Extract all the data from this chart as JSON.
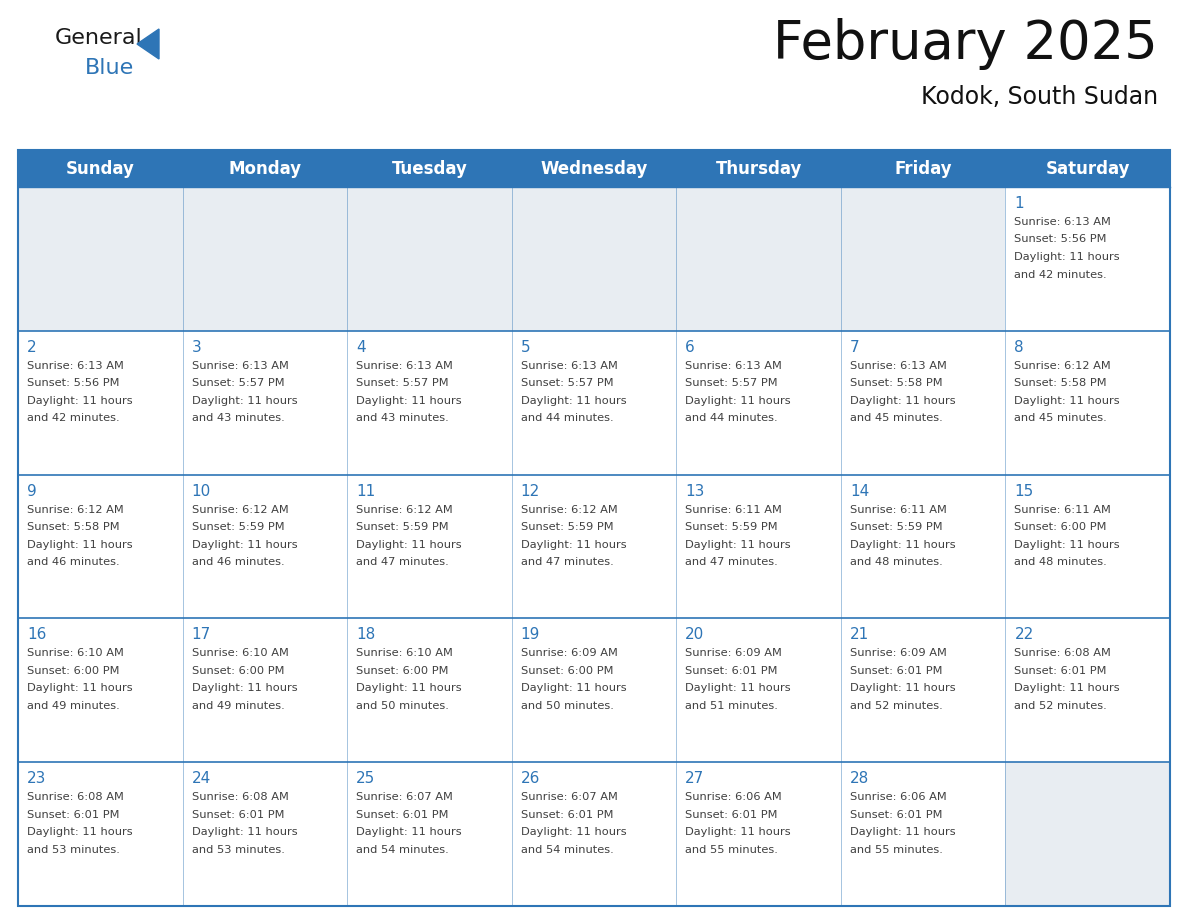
{
  "title": "February 2025",
  "subtitle": "Kodok, South Sudan",
  "header_bg_color": "#2E75B6",
  "header_text_color": "#FFFFFF",
  "cell_bg_color": "#FFFFFF",
  "empty_cell_bg_color": "#DDEEFF",
  "day_number_color": "#2E75B6",
  "info_text_color": "#404040",
  "border_color": "#2E75B6",
  "grid_line_color": "#2E75B6",
  "days_of_week": [
    "Sunday",
    "Monday",
    "Tuesday",
    "Wednesday",
    "Thursday",
    "Friday",
    "Saturday"
  ],
  "weeks": [
    [
      {
        "day": null,
        "sunrise": null,
        "sunset": null,
        "daylight": null
      },
      {
        "day": null,
        "sunrise": null,
        "sunset": null,
        "daylight": null
      },
      {
        "day": null,
        "sunrise": null,
        "sunset": null,
        "daylight": null
      },
      {
        "day": null,
        "sunrise": null,
        "sunset": null,
        "daylight": null
      },
      {
        "day": null,
        "sunrise": null,
        "sunset": null,
        "daylight": null
      },
      {
        "day": null,
        "sunrise": null,
        "sunset": null,
        "daylight": null
      },
      {
        "day": 1,
        "sunrise": "6:13 AM",
        "sunset": "5:56 PM",
        "daylight": "11 hours\nand 42 minutes."
      }
    ],
    [
      {
        "day": 2,
        "sunrise": "6:13 AM",
        "sunset": "5:56 PM",
        "daylight": "11 hours\nand 42 minutes."
      },
      {
        "day": 3,
        "sunrise": "6:13 AM",
        "sunset": "5:57 PM",
        "daylight": "11 hours\nand 43 minutes."
      },
      {
        "day": 4,
        "sunrise": "6:13 AM",
        "sunset": "5:57 PM",
        "daylight": "11 hours\nand 43 minutes."
      },
      {
        "day": 5,
        "sunrise": "6:13 AM",
        "sunset": "5:57 PM",
        "daylight": "11 hours\nand 44 minutes."
      },
      {
        "day": 6,
        "sunrise": "6:13 AM",
        "sunset": "5:57 PM",
        "daylight": "11 hours\nand 44 minutes."
      },
      {
        "day": 7,
        "sunrise": "6:13 AM",
        "sunset": "5:58 PM",
        "daylight": "11 hours\nand 45 minutes."
      },
      {
        "day": 8,
        "sunrise": "6:12 AM",
        "sunset": "5:58 PM",
        "daylight": "11 hours\nand 45 minutes."
      }
    ],
    [
      {
        "day": 9,
        "sunrise": "6:12 AM",
        "sunset": "5:58 PM",
        "daylight": "11 hours\nand 46 minutes."
      },
      {
        "day": 10,
        "sunrise": "6:12 AM",
        "sunset": "5:59 PM",
        "daylight": "11 hours\nand 46 minutes."
      },
      {
        "day": 11,
        "sunrise": "6:12 AM",
        "sunset": "5:59 PM",
        "daylight": "11 hours\nand 47 minutes."
      },
      {
        "day": 12,
        "sunrise": "6:12 AM",
        "sunset": "5:59 PM",
        "daylight": "11 hours\nand 47 minutes."
      },
      {
        "day": 13,
        "sunrise": "6:11 AM",
        "sunset": "5:59 PM",
        "daylight": "11 hours\nand 47 minutes."
      },
      {
        "day": 14,
        "sunrise": "6:11 AM",
        "sunset": "5:59 PM",
        "daylight": "11 hours\nand 48 minutes."
      },
      {
        "day": 15,
        "sunrise": "6:11 AM",
        "sunset": "6:00 PM",
        "daylight": "11 hours\nand 48 minutes."
      }
    ],
    [
      {
        "day": 16,
        "sunrise": "6:10 AM",
        "sunset": "6:00 PM",
        "daylight": "11 hours\nand 49 minutes."
      },
      {
        "day": 17,
        "sunrise": "6:10 AM",
        "sunset": "6:00 PM",
        "daylight": "11 hours\nand 49 minutes."
      },
      {
        "day": 18,
        "sunrise": "6:10 AM",
        "sunset": "6:00 PM",
        "daylight": "11 hours\nand 50 minutes."
      },
      {
        "day": 19,
        "sunrise": "6:09 AM",
        "sunset": "6:00 PM",
        "daylight": "11 hours\nand 50 minutes."
      },
      {
        "day": 20,
        "sunrise": "6:09 AM",
        "sunset": "6:01 PM",
        "daylight": "11 hours\nand 51 minutes."
      },
      {
        "day": 21,
        "sunrise": "6:09 AM",
        "sunset": "6:01 PM",
        "daylight": "11 hours\nand 52 minutes."
      },
      {
        "day": 22,
        "sunrise": "6:08 AM",
        "sunset": "6:01 PM",
        "daylight": "11 hours\nand 52 minutes."
      }
    ],
    [
      {
        "day": 23,
        "sunrise": "6:08 AM",
        "sunset": "6:01 PM",
        "daylight": "11 hours\nand 53 minutes."
      },
      {
        "day": 24,
        "sunrise": "6:08 AM",
        "sunset": "6:01 PM",
        "daylight": "11 hours\nand 53 minutes."
      },
      {
        "day": 25,
        "sunrise": "6:07 AM",
        "sunset": "6:01 PM",
        "daylight": "11 hours\nand 54 minutes."
      },
      {
        "day": 26,
        "sunrise": "6:07 AM",
        "sunset": "6:01 PM",
        "daylight": "11 hours\nand 54 minutes."
      },
      {
        "day": 27,
        "sunrise": "6:06 AM",
        "sunset": "6:01 PM",
        "daylight": "11 hours\nand 55 minutes."
      },
      {
        "day": 28,
        "sunrise": "6:06 AM",
        "sunset": "6:01 PM",
        "daylight": "11 hours\nand 55 minutes."
      },
      {
        "day": null,
        "sunrise": null,
        "sunset": null,
        "daylight": null
      }
    ]
  ],
  "logo_color_general": "#1a1a1a",
  "logo_color_blue": "#2E75B6",
  "logo_triangle_color": "#2E75B6",
  "title_fontsize": 38,
  "subtitle_fontsize": 17,
  "header_fontsize": 12,
  "day_num_fontsize": 11,
  "info_fontsize": 8.2
}
